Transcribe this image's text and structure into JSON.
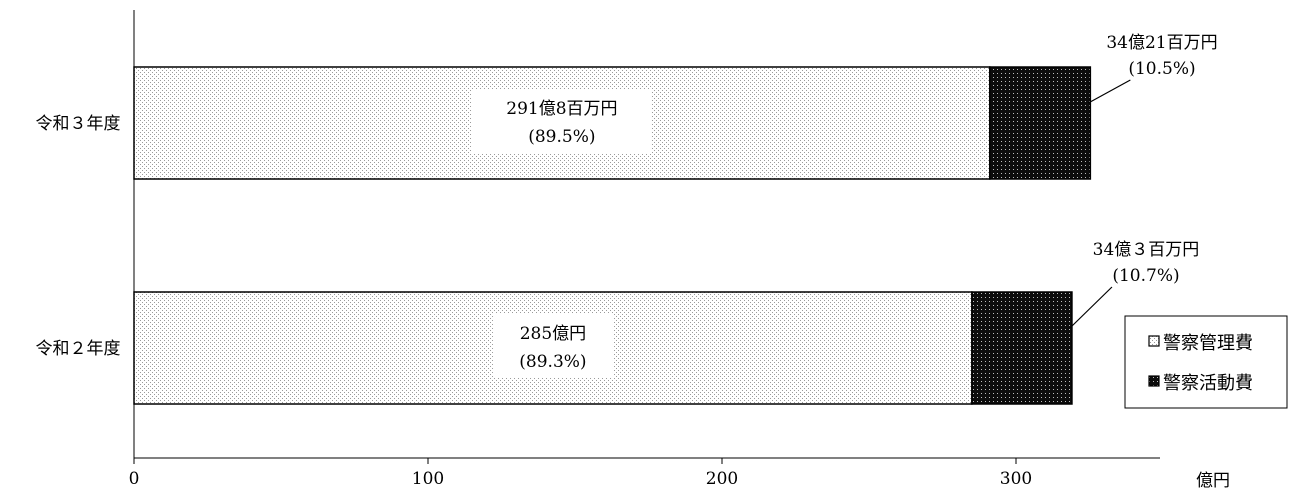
{
  "chart_data": {
    "type": "bar",
    "orientation": "horizontal",
    "stacked": true,
    "categories": [
      "令和３年度",
      "令和２年度"
    ],
    "series": [
      {
        "name": "警察管理費",
        "pattern": "light-dots",
        "values": [
          291.08,
          285.0
        ],
        "labels": [
          [
            "291億8百万円",
            "(89.5%)"
          ],
          [
            "285億円",
            "(89.3%)"
          ]
        ]
      },
      {
        "name": "警察活動費",
        "pattern": "dark-dots",
        "values": [
          34.21,
          34.03
        ],
        "labels": [
          [
            "34億21百万円",
            "(10.5%)"
          ],
          [
            "34億３百万円",
            "(10.7%)"
          ]
        ]
      }
    ],
    "xlim": [
      0,
      350
    ],
    "xticks": [
      0,
      100,
      200,
      300
    ],
    "xunit": "億円",
    "legend_position": "right",
    "grid": false
  }
}
